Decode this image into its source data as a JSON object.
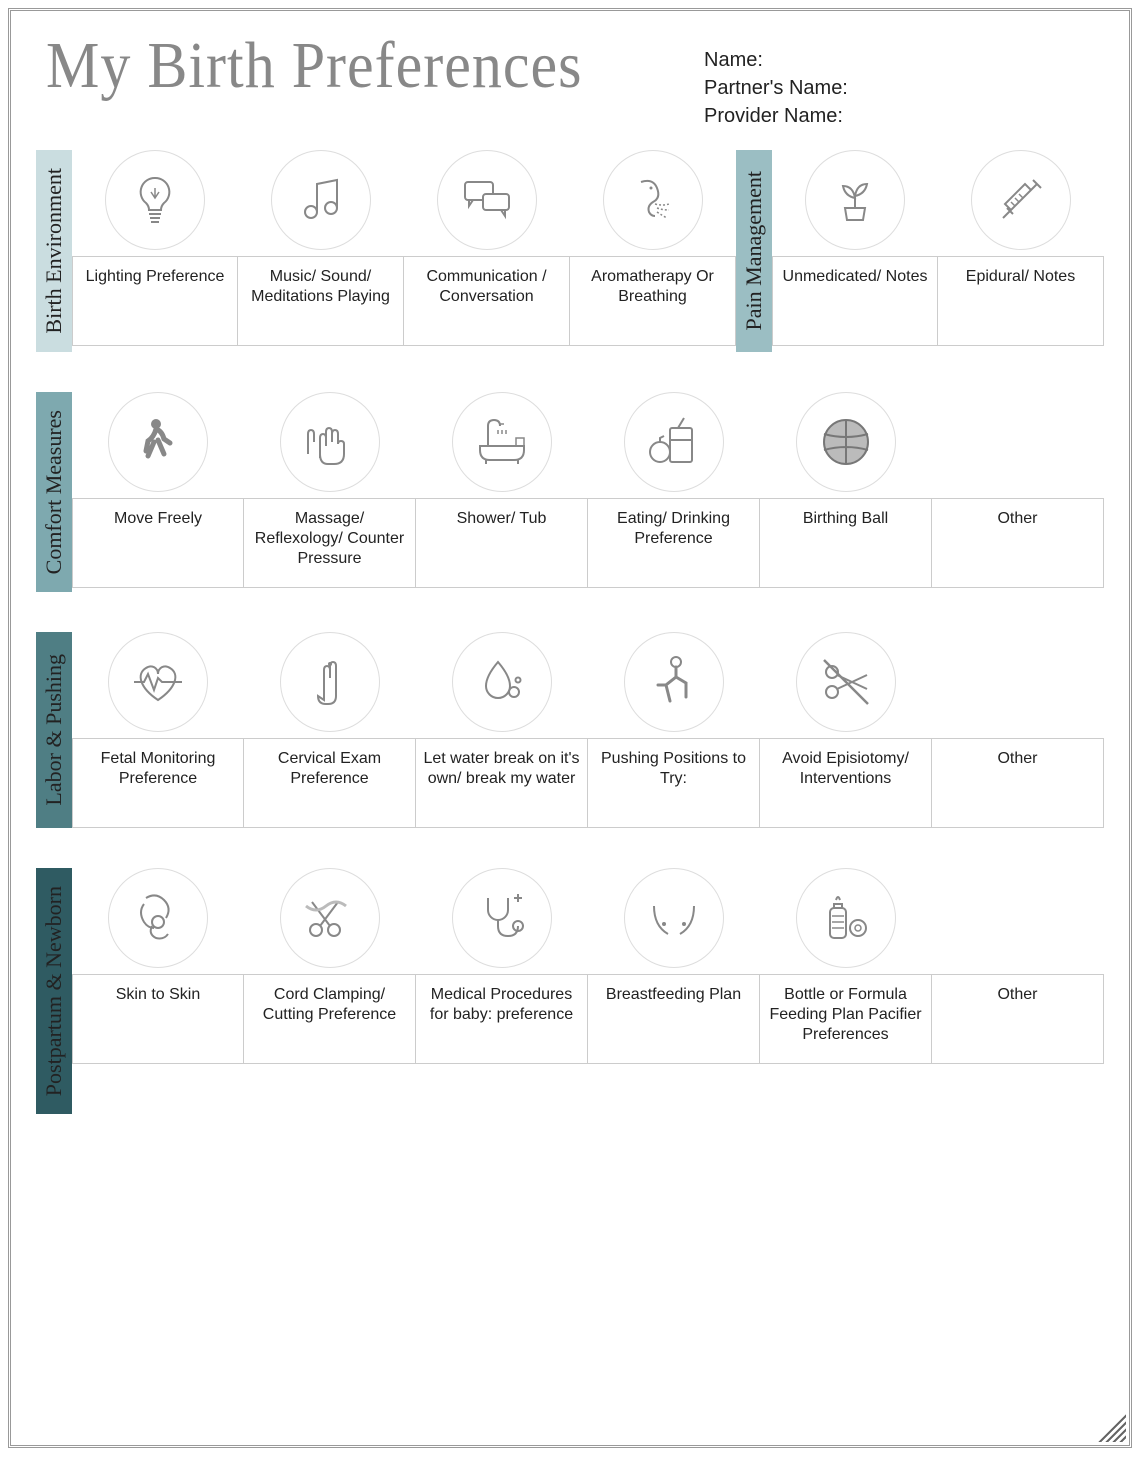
{
  "title": "My Birth Preferences",
  "fields": {
    "name": "Name:",
    "partner": "Partner's Name:",
    "provider": "Provider Name:"
  },
  "tabs": {
    "env": {
      "label": "Birth Environment",
      "color": "#cadde0"
    },
    "pain": {
      "label": "Pain Management",
      "color": "#9bbec3"
    },
    "comfort": {
      "label": "Comfort Measures",
      "color": "#7ea9af"
    },
    "labor": {
      "label": "Labor & Pushing",
      "color": "#4f7e84"
    },
    "pp": {
      "label": "Postpartum & Newborn",
      "color": "#2f5b62"
    }
  },
  "cells": {
    "env": [
      {
        "label": "Lighting Preference",
        "icon": "lightbulb"
      },
      {
        "label": "Music/ Sound/ Meditations Playing",
        "icon": "music"
      },
      {
        "label": "Communication / Conversation",
        "icon": "chat"
      },
      {
        "label": "Aromatherapy Or Breathing",
        "icon": "breath"
      }
    ],
    "pain": [
      {
        "label": "Unmedicated/ Notes",
        "icon": "plant"
      },
      {
        "label": "Epidural/ Notes",
        "icon": "syringe"
      }
    ],
    "comfort": [
      {
        "label": "Move Freely",
        "icon": "walk"
      },
      {
        "label": "Massage/ Reflexology/ Counter Pressure",
        "icon": "hands"
      },
      {
        "label": "Shower/ Tub",
        "icon": "tub"
      },
      {
        "label": "Eating/ Drinking Preference",
        "icon": "drink"
      },
      {
        "label": "Birthing Ball",
        "icon": "ball"
      },
      {
        "label": "Other",
        "icon": ""
      }
    ],
    "labor": [
      {
        "label": "Fetal Monitoring Preference",
        "icon": "heart"
      },
      {
        "label": "Cervical Exam Preference",
        "icon": "fingers"
      },
      {
        "label": "Let water break on it's own/ break my water",
        "icon": "drop"
      },
      {
        "label": "Pushing Positions to Try:",
        "icon": "squat"
      },
      {
        "label": "Avoid Episiotomy/ Interventions",
        "icon": "noscissors"
      },
      {
        "label": "Other",
        "icon": ""
      }
    ],
    "pp": [
      {
        "label": "Skin to Skin",
        "icon": "mombaby"
      },
      {
        "label": "Cord Clamping/ Cutting Preference",
        "icon": "scissorscord"
      },
      {
        "label": "Medical Procedures for baby: preference",
        "icon": "steth"
      },
      {
        "label": "Breastfeeding Plan",
        "icon": "breast"
      },
      {
        "label": "Bottle or Formula Feeding Plan Pacifier Preferences",
        "icon": "bottle"
      },
      {
        "label": "Other",
        "icon": ""
      }
    ]
  }
}
